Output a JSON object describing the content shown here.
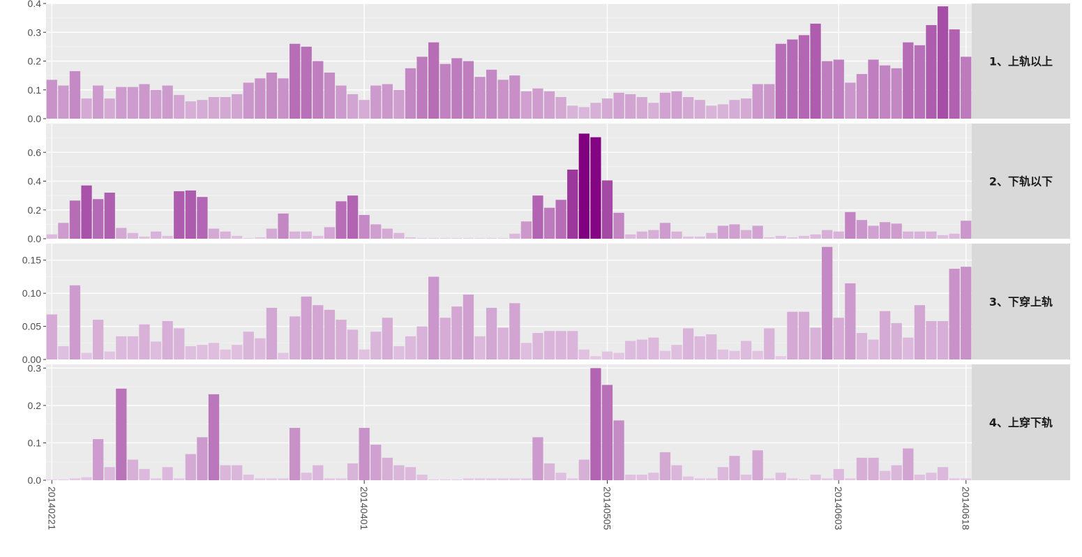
{
  "chart_data": {
    "type": "bar",
    "facet_layout": "rows",
    "grid": true,
    "legend": "none",
    "fill_low": "#e6cde6",
    "fill_high": "#800080",
    "x_ticks": [
      "20140221",
      "20140401",
      "20140505",
      "20140603",
      "20140618"
    ],
    "x_tick_index": [
      0,
      27,
      48,
      68,
      79
    ],
    "panels": [
      {
        "label": "1、上轨以上",
        "ylim": [
          0,
          0.4
        ],
        "yticks": [
          "0.0",
          "0.1",
          "0.2",
          "0.3",
          "0.4"
        ],
        "values": [
          0.135,
          0.115,
          0.165,
          0.07,
          0.115,
          0.07,
          0.11,
          0.11,
          0.12,
          0.1,
          0.115,
          0.082,
          0.06,
          0.065,
          0.075,
          0.075,
          0.085,
          0.125,
          0.14,
          0.16,
          0.14,
          0.26,
          0.25,
          0.2,
          0.16,
          0.115,
          0.085,
          0.065,
          0.115,
          0.12,
          0.1,
          0.175,
          0.215,
          0.265,
          0.19,
          0.21,
          0.2,
          0.145,
          0.17,
          0.135,
          0.15,
          0.095,
          0.105,
          0.095,
          0.075,
          0.045,
          0.04,
          0.055,
          0.07,
          0.09,
          0.085,
          0.075,
          0.055,
          0.09,
          0.095,
          0.075,
          0.065,
          0.045,
          0.05,
          0.065,
          0.07,
          0.12,
          0.12,
          0.26,
          0.275,
          0.29,
          0.33,
          0.2,
          0.205,
          0.125,
          0.155,
          0.205,
          0.185,
          0.175,
          0.265,
          0.255,
          0.325,
          0.39,
          0.31,
          0.215
        ]
      },
      {
        "label": "2、下轨以下",
        "ylim": [
          0,
          0.8
        ],
        "yticks": [
          "0.0",
          "0.2",
          "0.4",
          "0.6"
        ],
        "values": [
          0.03,
          0.11,
          0.265,
          0.37,
          0.275,
          0.32,
          0.075,
          0.04,
          0.015,
          0.05,
          0.02,
          0.33,
          0.335,
          0.29,
          0.07,
          0.05,
          0.02,
          0.005,
          0.01,
          0.07,
          0.175,
          0.05,
          0.05,
          0.02,
          0.08,
          0.26,
          0.3,
          0.165,
          0.1,
          0.07,
          0.04,
          0.01,
          0.005,
          0.005,
          0.005,
          0.005,
          0.005,
          0.005,
          0.005,
          0.005,
          0.035,
          0.12,
          0.3,
          0.215,
          0.27,
          0.48,
          0.73,
          0.705,
          0.405,
          0.18,
          0.03,
          0.05,
          0.06,
          0.11,
          0.05,
          0.015,
          0.015,
          0.04,
          0.09,
          0.1,
          0.06,
          0.09,
          0.01,
          0.02,
          0.01,
          0.02,
          0.03,
          0.06,
          0.05,
          0.185,
          0.13,
          0.09,
          0.115,
          0.105,
          0.05,
          0.05,
          0.05,
          0.025,
          0.035,
          0.125
        ]
      },
      {
        "label": "3、下穿上轨",
        "ylim": [
          0,
          0.175
        ],
        "yticks": [
          "0.00",
          "0.05",
          "0.10",
          "0.15"
        ],
        "values": [
          0.068,
          0.02,
          0.112,
          0.01,
          0.06,
          0.012,
          0.035,
          0.035,
          0.053,
          0.027,
          0.058,
          0.047,
          0.02,
          0.022,
          0.025,
          0.015,
          0.022,
          0.042,
          0.032,
          0.078,
          0.01,
          0.065,
          0.095,
          0.082,
          0.075,
          0.06,
          0.045,
          0.015,
          0.042,
          0.063,
          0.02,
          0.035,
          0.05,
          0.125,
          0.063,
          0.08,
          0.098,
          0.035,
          0.078,
          0.048,
          0.085,
          0.025,
          0.04,
          0.043,
          0.043,
          0.043,
          0.015,
          0.005,
          0.012,
          0.01,
          0.028,
          0.03,
          0.033,
          0.013,
          0.022,
          0.047,
          0.035,
          0.038,
          0.015,
          0.013,
          0.028,
          0.013,
          0.047,
          0.005,
          0.072,
          0.072,
          0.048,
          0.17,
          0.063,
          0.115,
          0.04,
          0.03,
          0.073,
          0.055,
          0.033,
          0.082,
          0.058,
          0.058,
          0.137,
          0.14
        ]
      },
      {
        "label": "4、上穿下轨",
        "ylim": [
          0,
          0.31
        ],
        "yticks": [
          "0.0",
          "0.1",
          "0.2",
          "0.3"
        ],
        "values": [
          0.002,
          0.002,
          0.005,
          0.008,
          0.11,
          0.035,
          0.245,
          0.055,
          0.03,
          0.005,
          0.035,
          0.005,
          0.07,
          0.115,
          0.23,
          0.04,
          0.04,
          0.015,
          0.005,
          0.005,
          0.005,
          0.14,
          0.02,
          0.04,
          0.005,
          0.005,
          0.045,
          0.14,
          0.095,
          0.06,
          0.04,
          0.035,
          0.015,
          0.002,
          0.002,
          0.002,
          0.005,
          0.005,
          0.005,
          0.005,
          0.005,
          0.005,
          0.115,
          0.045,
          0.02,
          0.005,
          0.055,
          0.3,
          0.255,
          0.16,
          0.015,
          0.015,
          0.02,
          0.075,
          0.04,
          0.01,
          0.005,
          0.005,
          0.035,
          0.065,
          0.015,
          0.08,
          0.005,
          0.02,
          0.005,
          0.002,
          0.015,
          0.005,
          0.03,
          0.005,
          0.06,
          0.06,
          0.025,
          0.04,
          0.085,
          0.015,
          0.02,
          0.035,
          0.005,
          0.005
        ]
      }
    ]
  }
}
